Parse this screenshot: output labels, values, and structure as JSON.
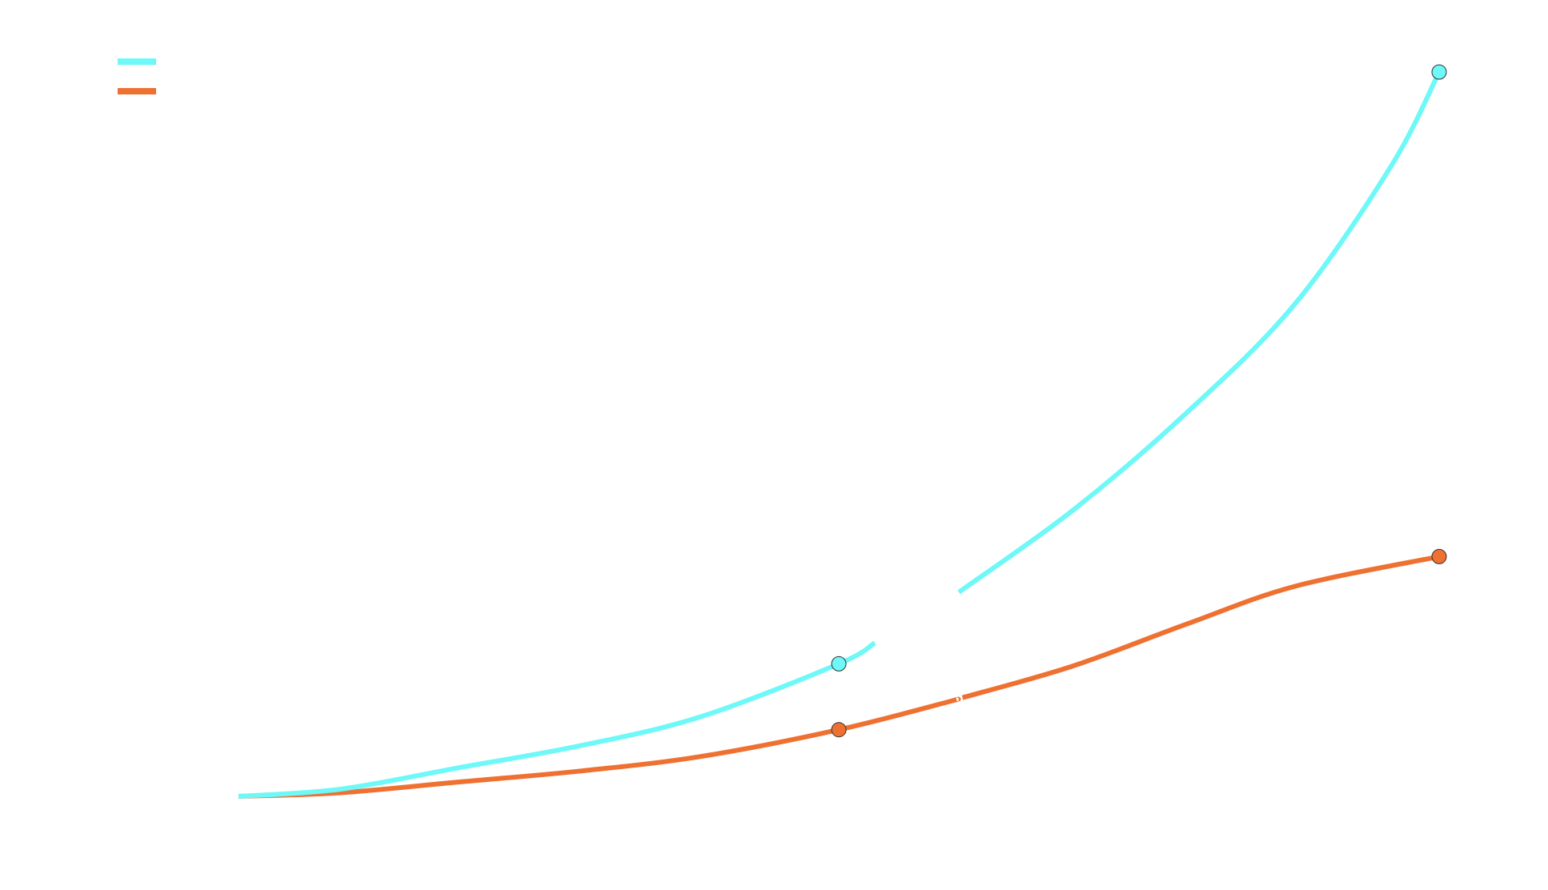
{
  "chart_data": {
    "type": "line",
    "title": "",
    "xlabel": "",
    "ylabel": "",
    "grid": false,
    "legend_position": "top-left",
    "xlim": [
      0,
      1
    ],
    "ylim": [
      0,
      1
    ],
    "series": [
      {
        "color": "#6ef8f8",
        "marker_points": [
          [
            0.5,
            0.183
          ],
          [
            1.0,
            1.0
          ]
        ],
        "curve": [
          [
            0.0,
            0.0
          ],
          [
            0.085,
            0.01
          ],
          [
            0.185,
            0.04
          ],
          [
            0.285,
            0.07
          ],
          [
            0.385,
            0.11
          ],
          [
            0.5,
            0.183
          ],
          [
            0.59,
            0.27
          ],
          [
            0.695,
            0.395
          ],
          [
            0.79,
            0.53
          ],
          [
            0.88,
            0.68
          ],
          [
            0.96,
            0.87
          ],
          [
            1.0,
            1.0
          ]
        ],
        "gaps": [
          [
            0.53,
            0.6
          ]
        ]
      },
      {
        "color": "#ee7132",
        "marker_points": [
          [
            0.5,
            0.092
          ],
          [
            1.0,
            0.331
          ]
        ],
        "curve": [
          [
            0.0,
            0.0
          ],
          [
            0.085,
            0.005
          ],
          [
            0.185,
            0.02
          ],
          [
            0.285,
            0.035
          ],
          [
            0.385,
            0.055
          ],
          [
            0.5,
            0.092
          ],
          [
            0.59,
            0.13
          ],
          [
            0.695,
            0.18
          ],
          [
            0.79,
            0.238
          ],
          [
            0.88,
            0.29
          ],
          [
            1.0,
            0.331
          ]
        ],
        "gaps": [
          [
            0.598,
            0.603
          ]
        ]
      }
    ]
  }
}
